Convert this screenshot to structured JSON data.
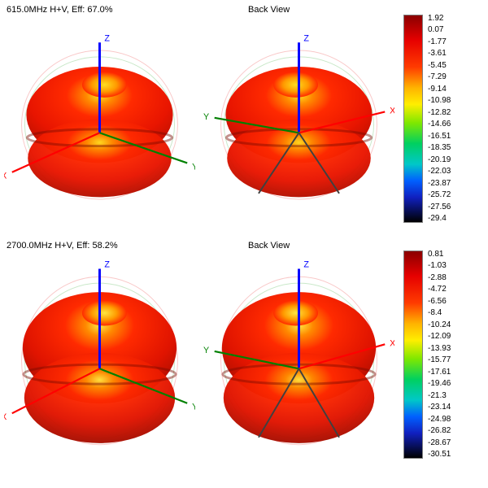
{
  "panels": [
    {
      "title_left": "615.0MHz H+V, Eff: 67.0%",
      "title_right": "Back View",
      "axis_labels_front": {
        "x": "X",
        "y": "Y",
        "z": "Z"
      },
      "axis_labels_back": {
        "x": "X",
        "y": "Y",
        "z": "Z"
      },
      "pattern_type": "3d-omni-dipole",
      "squash": 0.82,
      "bulge": 1.0,
      "top_dip_color": "#ffdd20",
      "body_color_hi": "#ff2a00",
      "body_color_mid": "#e81500",
      "body_color_low": "#a80e00",
      "outline_color": "#f9c8c8",
      "outline_color2": "#c9e8c9",
      "legend": {
        "ticks": [
          "1.92",
          "0.07",
          "-1.77",
          "-3.61",
          "-5.45",
          "-7.29",
          "-9.14",
          "-10.98",
          "-12.82",
          "-14.66",
          "-16.51",
          "-18.35",
          "-20.19",
          "-22.03",
          "-23.87",
          "-25.72",
          "-27.56",
          "-29.4"
        ],
        "gradient_stops": [
          [
            "0%",
            "#8b0000"
          ],
          [
            "12%",
            "#e60000"
          ],
          [
            "25%",
            "#ff3b00"
          ],
          [
            "35%",
            "#ffb300"
          ],
          [
            "43%",
            "#ffee00"
          ],
          [
            "52%",
            "#7fe800"
          ],
          [
            "62%",
            "#00d060"
          ],
          [
            "72%",
            "#00c8c8"
          ],
          [
            "80%",
            "#0060ff"
          ],
          [
            "88%",
            "#1020c0"
          ],
          [
            "100%",
            "#000000"
          ]
        ]
      }
    },
    {
      "title_left": "2700.0MHz H+V, Eff: 58.2%",
      "title_right": "Back View",
      "axis_labels_front": {
        "x": "X",
        "y": "Y",
        "z": "Z"
      },
      "axis_labels_back": {
        "x": "X",
        "y": "Y",
        "z": "Z"
      },
      "pattern_type": "3d-omni-dipole",
      "squash": 0.95,
      "bulge": 1.05,
      "top_dip_color": "#ffe640",
      "body_color_hi": "#ff2a00",
      "body_color_mid": "#e01400",
      "body_color_low": "#980c00",
      "outline_color": "#f9c8c8",
      "outline_color2": "#c9e8c9",
      "legend": {
        "ticks": [
          "0.81",
          "-1.03",
          "-2.88",
          "-4.72",
          "-6.56",
          "-8.4",
          "-10.24",
          "-12.09",
          "-13.93",
          "-15.77",
          "-17.61",
          "-19.46",
          "-21.3",
          "-23.14",
          "-24.98",
          "-26.82",
          "-28.67",
          "-30.51"
        ],
        "gradient_stops": [
          [
            "0%",
            "#8b0000"
          ],
          [
            "12%",
            "#e60000"
          ],
          [
            "25%",
            "#ff3b00"
          ],
          [
            "35%",
            "#ffb300"
          ],
          [
            "43%",
            "#ffee00"
          ],
          [
            "52%",
            "#7fe800"
          ],
          [
            "62%",
            "#00d060"
          ],
          [
            "72%",
            "#00c8c8"
          ],
          [
            "80%",
            "#0060ff"
          ],
          [
            "88%",
            "#1020c0"
          ],
          [
            "100%",
            "#000000"
          ]
        ]
      }
    }
  ],
  "axis_style": {
    "z_color": "#0000ff",
    "y_color": "#008000",
    "x_color": "#ff0000",
    "back_off_color": "#404040",
    "font_size": 11
  },
  "background_color": "#ffffff"
}
